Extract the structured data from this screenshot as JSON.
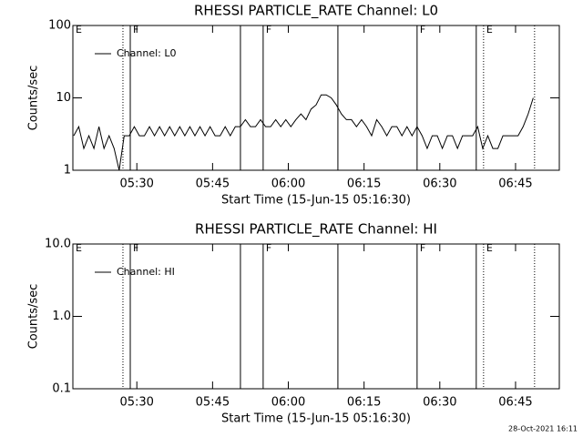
{
  "chart_data": [
    {
      "type": "line",
      "title": "RHESSI PARTICLE_RATE Channel: L0",
      "x_label": "Start Time (15-Jun-15 05:16:30)",
      "y_label": "Counts/sec",
      "log_y": true,
      "xlim": [
        50,
        5830
      ],
      "ylim": [
        1,
        100
      ],
      "yticks": [
        1,
        10,
        100
      ],
      "xticks": [
        {
          "value": 810,
          "label": "05:30"
        },
        {
          "value": 1710,
          "label": "05:45"
        },
        {
          "value": 2610,
          "label": "06:00"
        },
        {
          "value": 3510,
          "label": "06:15"
        },
        {
          "value": 4410,
          "label": "06:30"
        },
        {
          "value": 5310,
          "label": "06:45"
        }
      ],
      "legend": "top-left",
      "markers": [
        {
          "x": 50,
          "label": "E"
        },
        {
          "x": 645,
          "line": "dotted"
        },
        {
          "x": 732,
          "line": "solid",
          "label": "F"
        },
        {
          "x": 2041,
          "line": "solid"
        },
        {
          "x": 2311,
          "line": "solid",
          "label": "F"
        },
        {
          "x": 3199,
          "line": "solid"
        },
        {
          "x": 4140,
          "line": "solid",
          "label": "F"
        },
        {
          "x": 4843,
          "line": "solid"
        },
        {
          "x": 4930,
          "line": "dotted",
          "label": "E"
        },
        {
          "x": 5536,
          "line": "dotted"
        }
      ],
      "x": [
        60,
        120,
        180,
        240,
        300,
        360,
        420,
        480,
        540,
        600,
        660,
        720,
        780,
        840,
        900,
        960,
        1020,
        1080,
        1140,
        1200,
        1260,
        1320,
        1380,
        1440,
        1500,
        1560,
        1620,
        1680,
        1740,
        1800,
        1860,
        1920,
        1980,
        2040,
        2100,
        2160,
        2220,
        2280,
        2340,
        2400,
        2460,
        2520,
        2580,
        2640,
        2700,
        2760,
        2820,
        2880,
        2940,
        3000,
        3060,
        3120,
        3180,
        3240,
        3300,
        3360,
        3420,
        3480,
        3540,
        3600,
        3660,
        3720,
        3780,
        3840,
        3900,
        3960,
        4020,
        4080,
        4140,
        4200,
        4260,
        4320,
        4380,
        4440,
        4500,
        4560,
        4620,
        4680,
        4740,
        4800,
        4860,
        4920,
        4980,
        5040,
        5100,
        5160,
        5220,
        5280,
        5340,
        5400,
        5460,
        5520
      ],
      "series": [
        {
          "name": "Channel: L0",
          "color": "#000000",
          "values": [
            3,
            4,
            2,
            3,
            2,
            4,
            2,
            3,
            2,
            1,
            3,
            3,
            4,
            3,
            3,
            4,
            3,
            4,
            3,
            4,
            3,
            4,
            3,
            4,
            3,
            4,
            3,
            4,
            3,
            3,
            4,
            3,
            4,
            4,
            5,
            4,
            4,
            5,
            4,
            4,
            5,
            4,
            5,
            4,
            5,
            6,
            5,
            7,
            8,
            11,
            11,
            10,
            8,
            6,
            5,
            5,
            4,
            5,
            4,
            3,
            5,
            4,
            3,
            4,
            4,
            3,
            4,
            3,
            4,
            3,
            2,
            3,
            3,
            2,
            3,
            3,
            2,
            3,
            3,
            3,
            4,
            2,
            3,
            2,
            2,
            3,
            3,
            3,
            3,
            4,
            6,
            10
          ]
        }
      ]
    },
    {
      "type": "line",
      "title": "RHESSI PARTICLE_RATE Channel: HI",
      "x_label": "Start Time (15-Jun-15 05:16:30)",
      "y_label": "Counts/sec",
      "log_y": true,
      "xlim": [
        50,
        5830
      ],
      "ylim": [
        0.1,
        10
      ],
      "yticks": [
        0.1,
        {
          "value": 1,
          "label": "1.0"
        },
        {
          "value": 10,
          "label": "10.0"
        }
      ],
      "xticks": [
        {
          "value": 810,
          "label": "05:30"
        },
        {
          "value": 1710,
          "label": "05:45"
        },
        {
          "value": 2610,
          "label": "06:00"
        },
        {
          "value": 3510,
          "label": "06:15"
        },
        {
          "value": 4410,
          "label": "06:30"
        },
        {
          "value": 5310,
          "label": "06:45"
        }
      ],
      "legend": "top-left",
      "markers": [
        {
          "x": 50,
          "label": "E"
        },
        {
          "x": 645,
          "line": "dotted"
        },
        {
          "x": 732,
          "line": "solid",
          "label": "F"
        },
        {
          "x": 2041,
          "line": "solid"
        },
        {
          "x": 2311,
          "line": "solid",
          "label": "F"
        },
        {
          "x": 3199,
          "line": "solid"
        },
        {
          "x": 4140,
          "line": "solid",
          "label": "F"
        },
        {
          "x": 4843,
          "line": "solid"
        },
        {
          "x": 4930,
          "line": "dotted",
          "label": "E"
        },
        {
          "x": 5536,
          "line": "dotted"
        }
      ],
      "x": [],
      "series": [
        {
          "name": "Channel: HI",
          "color": "#000000",
          "values": []
        }
      ]
    }
  ],
  "footer": "28-Oct-2021 16:11"
}
